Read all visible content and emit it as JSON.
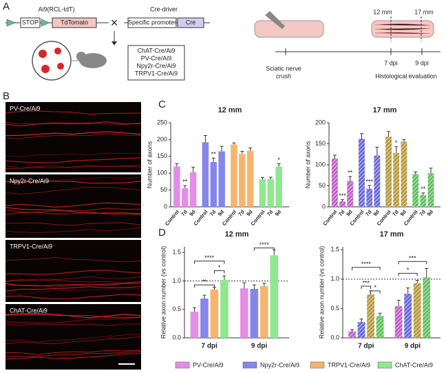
{
  "panel_a": {
    "label": "A",
    "ai9": "Ai9(RCL-tdT)",
    "stop": "STOP",
    "tdtomato": "TdTomato",
    "cross": "×",
    "cre_driver": "Cre-driver",
    "promoter": "Specific promoter",
    "cre": "Cre",
    "lines": [
      "ChAT-Cre/Ai9",
      "PV-Cre/Ai9",
      "Npy2r-Cre/Ai9",
      "TRPV1-Cre/Ai9"
    ],
    "crush": [
      "Sciatic nerve",
      "crush"
    ],
    "mm12": "12 mm",
    "mm17": "17 mm",
    "dpi7": "7 dpi",
    "dpi9": "9 dpi",
    "evaluation": "Histological  evaluation"
  },
  "panel_b": {
    "label": "B",
    "images": [
      "PV-Cre/Ai9",
      "Npy2r-Cre/Ai9",
      "TRPV1-Cre/Ai9",
      "ChAT-Cre/Ai9"
    ]
  },
  "panel_c_label": "C",
  "panel_d_label": "D",
  "chart_data": [
    {
      "type": "bar",
      "title": "12 mm",
      "ylabel": "Number of axons",
      "hatch": false,
      "categories": [
        "Control",
        "7d",
        "9d"
      ],
      "ylim": [
        0,
        250
      ],
      "yticks": [
        0,
        50,
        100,
        150,
        200,
        250
      ],
      "series": [
        {
          "name": "PV-Cre/Ai9",
          "color": "#e48de8",
          "values": [
            120,
            55,
            103
          ],
          "errors": [
            8,
            8,
            15
          ],
          "sig": [
            null,
            "**",
            null
          ]
        },
        {
          "name": "Npy2r-Cre/Ai9",
          "color": "#8585ea",
          "values": [
            192,
            133,
            165
          ],
          "errors": [
            20,
            12,
            15
          ],
          "sig": [
            null,
            "**",
            null
          ]
        },
        {
          "name": "TRPV1-Cre/Ai9",
          "color": "#f7b46c",
          "values": [
            185,
            157,
            167
          ],
          "errors": [
            5,
            8,
            8
          ],
          "sig": [
            null,
            null,
            null
          ]
        },
        {
          "name": "ChAT-Cre/Ai9",
          "color": "#8ee88e",
          "values": [
            82,
            83,
            120
          ],
          "errors": [
            5,
            5,
            8
          ],
          "sig": [
            null,
            null,
            "*"
          ]
        }
      ]
    },
    {
      "type": "bar",
      "title": "17 mm",
      "ylabel": "Number of axons",
      "hatch": true,
      "categories": [
        "Control",
        "7d",
        "9d"
      ],
      "ylim": [
        0,
        200
      ],
      "yticks": [
        0,
        50,
        100,
        150,
        200
      ],
      "series": [
        {
          "name": "PV-Cre/Ai9",
          "color": "#c060c8",
          "values": [
            115,
            13,
            62
          ],
          "errors": [
            8,
            4,
            10
          ],
          "sig": [
            null,
            "***",
            "**"
          ]
        },
        {
          "name": "Npy2r-Cre/Ai9",
          "color": "#6a6ad8",
          "values": [
            162,
            43,
            122
          ],
          "errors": [
            12,
            8,
            20
          ],
          "sig": [
            null,
            "***",
            null
          ]
        },
        {
          "name": "TRPV1-Cre/Ai9",
          "color": "#b89a40",
          "values": [
            167,
            128,
            155
          ],
          "errors": [
            12,
            15,
            5
          ],
          "sig": [
            null,
            "*",
            null
          ]
        },
        {
          "name": "ChAT-Cre/Ai9",
          "color": "#60c060",
          "values": [
            78,
            28,
            80
          ],
          "errors": [
            5,
            5,
            12
          ],
          "sig": [
            null,
            "**",
            null
          ]
        }
      ]
    },
    {
      "type": "bar",
      "title": "12 mm",
      "ylabel": "Relative axon number (vs control)",
      "hatch": false,
      "categories": [
        "7 dpi",
        "9 dpi"
      ],
      "ylim": [
        0,
        1.6
      ],
      "refline": 1,
      "yticks": [
        {
          "value": 0,
          "label": "0.0"
        },
        0.5,
        {
          "value": 1,
          "label": "1.0"
        },
        1.5
      ],
      "brackets": [
        "****",
        "*",
        "**",
        "****"
      ],
      "series": [
        {
          "name": "PV-Cre/Ai9",
          "color": "#e48de8",
          "values": [
            0.46,
            0.87
          ],
          "errors": [
            0.07,
            0.1
          ]
        },
        {
          "name": "Npy2r-Cre/Ai9",
          "color": "#8585ea",
          "values": [
            0.69,
            0.86
          ],
          "errors": [
            0.06,
            0.07
          ]
        },
        {
          "name": "TRPV1-Cre/Ai9",
          "color": "#f7b46c",
          "values": [
            0.85,
            0.91
          ],
          "errors": [
            0.04,
            0.05
          ]
        },
        {
          "name": "ChAT-Cre/Ai9",
          "color": "#8ee88e",
          "values": [
            1.02,
            1.45
          ],
          "errors": [
            0.07,
            0.1
          ]
        }
      ]
    },
    {
      "type": "bar",
      "title": "17 mm",
      "ylabel": "Relative axon number (vs control)",
      "hatch": true,
      "categories": [
        "7 dpi",
        "9 dpi"
      ],
      "ylim": [
        0,
        1.55
      ],
      "refline": 1,
      "yticks": [
        {
          "value": 0,
          "label": "0.0"
        },
        0.5,
        {
          "value": 1,
          "label": "1.0"
        },
        1.5
      ],
      "brackets": [
        "****",
        "***",
        "*",
        "*",
        "***"
      ],
      "series": [
        {
          "name": "PV-Cre/Ai9",
          "color": "#c060c8",
          "values": [
            0.11,
            0.54
          ],
          "errors": [
            0.03,
            0.1
          ]
        },
        {
          "name": "Npy2r-Cre/Ai9",
          "color": "#6a6ad8",
          "values": [
            0.27,
            0.75
          ],
          "errors": [
            0.05,
            0.1
          ]
        },
        {
          "name": "TRPV1-Cre/Ai9",
          "color": "#b89a40",
          "values": [
            0.74,
            0.93
          ],
          "errors": [
            0.06,
            0.05
          ]
        },
        {
          "name": "ChAT-Cre/Ai9",
          "color": "#60c060",
          "values": [
            0.37,
            1.03
          ],
          "errors": [
            0.05,
            0.15
          ]
        }
      ]
    }
  ]
}
